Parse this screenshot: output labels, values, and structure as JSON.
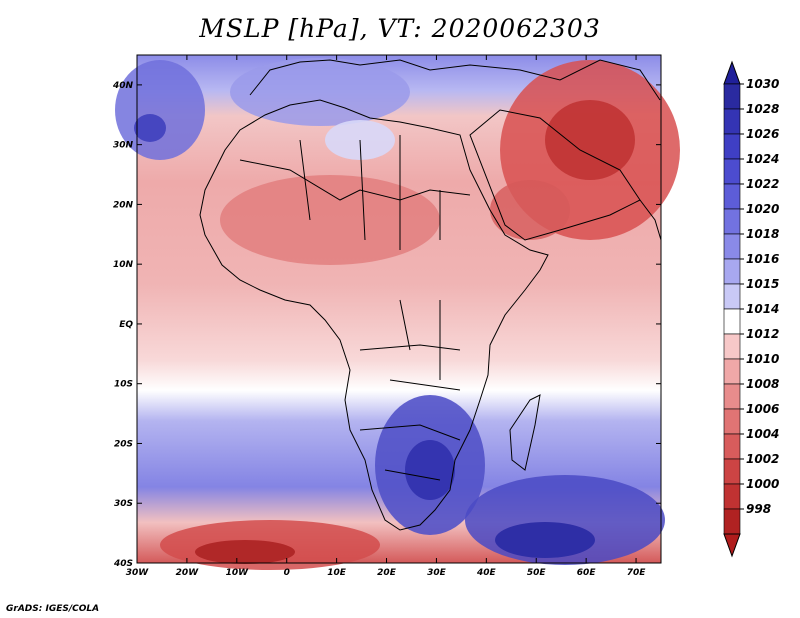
{
  "title": "MSLP [hPa], VT: 2020062303",
  "credit": "GrADS: IGES/COLA",
  "map": {
    "lat_labels": [
      "40N",
      "30N",
      "20N",
      "10N",
      "EQ",
      "10S",
      "20S",
      "30S",
      "40S"
    ],
    "lon_labels": [
      "30W",
      "20W",
      "10W",
      "0",
      "10E",
      "20E",
      "30E",
      "40E",
      "50E",
      "60E",
      "70E"
    ],
    "lat_values": [
      40,
      30,
      20,
      10,
      0,
      -10,
      -20,
      -30,
      -40
    ],
    "lon_values": [
      -30,
      -20,
      -10,
      0,
      10,
      20,
      30,
      40,
      50,
      60,
      70
    ]
  },
  "colorbar": {
    "levels": [
      "1030",
      "1028",
      "1026",
      "1024",
      "1022",
      "1020",
      "1018",
      "1016",
      "1015",
      "1014",
      "1012",
      "1010",
      "1008",
      "1006",
      "1004",
      "1002",
      "1000",
      "998"
    ],
    "colors": [
      "#2a2aa0",
      "#3434b4",
      "#3f3fc4",
      "#4c4ccf",
      "#5d5dd8",
      "#7272e0",
      "#8a8ae8",
      "#a8a8f0",
      "#c9c9f6",
      "#ffffff",
      "#f7c8c8",
      "#f0a8a8",
      "#e88c8c",
      "#e07474",
      "#d85c5c",
      "#cc4444",
      "#c03232",
      "#b02222"
    ]
  }
}
